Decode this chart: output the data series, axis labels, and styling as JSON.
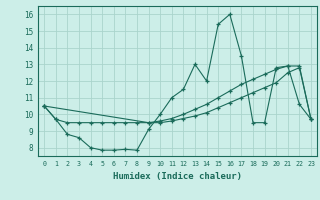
{
  "xlabel": "Humidex (Indice chaleur)",
  "bg_color": "#cceee8",
  "grid_color": "#aad4cc",
  "line_color": "#1a6b5a",
  "xlim": [
    -0.5,
    23.5
  ],
  "ylim": [
    7.5,
    16.5
  ],
  "yticks": [
    8,
    9,
    10,
    11,
    12,
    13,
    14,
    15,
    16
  ],
  "xticks": [
    0,
    1,
    2,
    3,
    4,
    5,
    6,
    7,
    8,
    9,
    10,
    11,
    12,
    13,
    14,
    15,
    16,
    17,
    18,
    19,
    20,
    21,
    22,
    23
  ],
  "series1_x": [
    0,
    1,
    2,
    3,
    4,
    5,
    6,
    7,
    8,
    9,
    10,
    11,
    12,
    13,
    14,
    15,
    16,
    17,
    18,
    19,
    20,
    21,
    22,
    23
  ],
  "series1_y": [
    10.5,
    9.7,
    8.8,
    8.6,
    8.0,
    7.85,
    7.85,
    7.9,
    7.85,
    9.1,
    10.0,
    11.0,
    11.5,
    13.0,
    12.0,
    15.4,
    16.0,
    13.5,
    9.5,
    9.5,
    12.8,
    12.9,
    10.6,
    9.7
  ],
  "series2_x": [
    0,
    1,
    2,
    3,
    4,
    5,
    6,
    7,
    8,
    9,
    10,
    11,
    12,
    13,
    14,
    15,
    16,
    17,
    18,
    19,
    20,
    21,
    22,
    23
  ],
  "series2_y": [
    10.5,
    9.7,
    9.5,
    9.5,
    9.5,
    9.5,
    9.5,
    9.5,
    9.5,
    9.5,
    9.5,
    9.6,
    9.75,
    9.9,
    10.1,
    10.4,
    10.7,
    11.0,
    11.3,
    11.6,
    11.9,
    12.5,
    12.8,
    9.7
  ],
  "series3_x": [
    0,
    9,
    10,
    11,
    12,
    13,
    14,
    15,
    16,
    17,
    18,
    19,
    20,
    21,
    22,
    23
  ],
  "series3_y": [
    10.5,
    9.5,
    9.6,
    9.75,
    10.0,
    10.3,
    10.6,
    11.0,
    11.4,
    11.8,
    12.1,
    12.4,
    12.7,
    12.9,
    12.9,
    9.7
  ]
}
